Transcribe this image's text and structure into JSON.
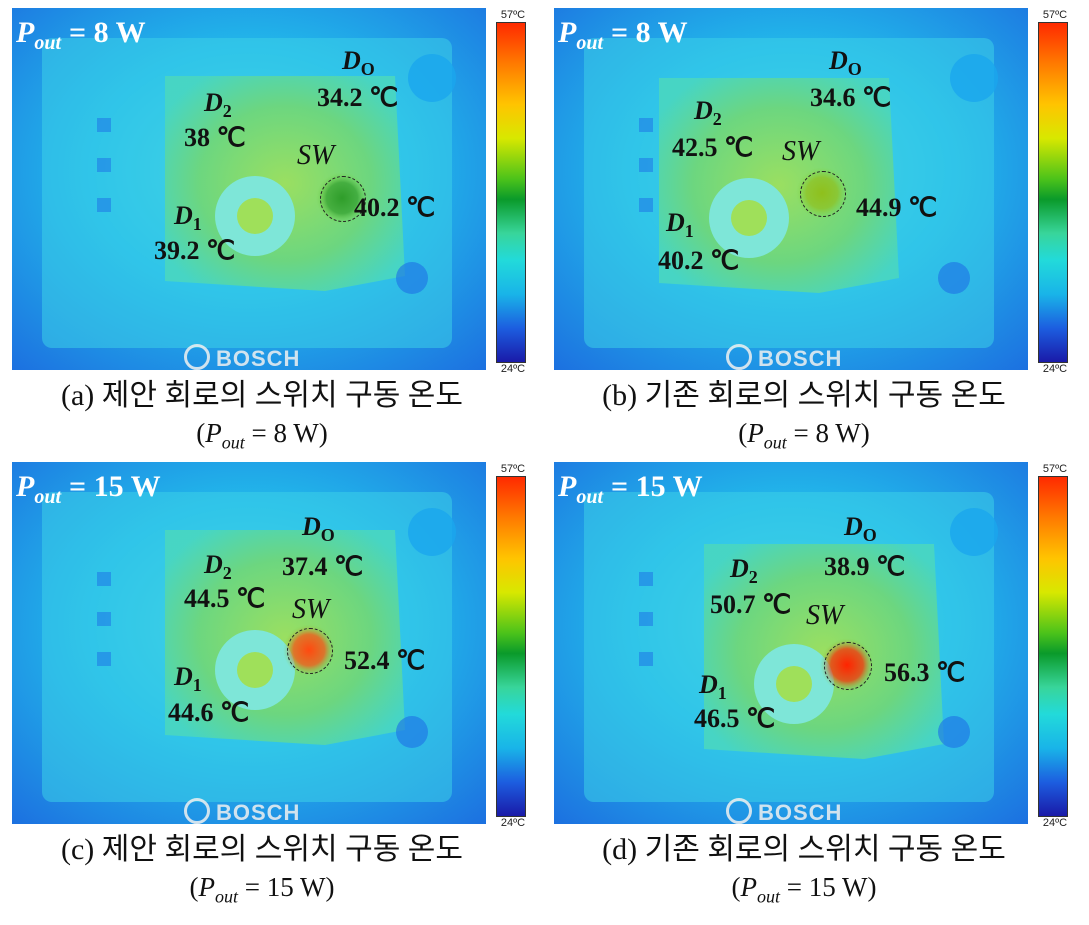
{
  "colorbar": {
    "max": "57ºC",
    "min": "24ºC"
  },
  "watermark": "BOSCH",
  "panels": [
    {
      "pout_symbol": "P",
      "pout_sub": "out",
      "pout_value": "= 8 W",
      "do_temp": "34.2 ℃",
      "d2_temp": "38 ℃",
      "d1_temp": "39.2 ℃",
      "sw_temp": "40.2 ℃",
      "caption": "(a) 제안 회로의 스위치 구동 온도",
      "caption_sub": "(P",
      "caption_sub_idx": "out",
      "caption_sub_tail": " = 8 W)",
      "hot_color": "#2f9d2a"
    },
    {
      "pout_symbol": "P",
      "pout_sub": "out",
      "pout_value": "= 8 W",
      "do_temp": "34.6 ℃",
      "d2_temp": "42.5 ℃",
      "d1_temp": "40.2 ℃",
      "sw_temp": "44.9 ℃",
      "caption": "(b) 기존 회로의 스위치 구동 온도",
      "caption_sub": "(P",
      "caption_sub_idx": "out",
      "caption_sub_tail": " = 8 W)",
      "hot_color": "#8fc01c"
    },
    {
      "pout_symbol": "P",
      "pout_sub": "out",
      "pout_value": "= 15 W",
      "do_temp": "37.4 ℃",
      "d2_temp": "44.5 ℃",
      "d1_temp": "44.6 ℃",
      "sw_temp": "52.4 ℃",
      "caption": "(c) 제안 회로의 스위치 구동 온도",
      "caption_sub": "(P",
      "caption_sub_idx": "out",
      "caption_sub_tail": " = 15 W)",
      "hot_color": "#ff4a10"
    },
    {
      "pout_symbol": "P",
      "pout_sub": "out",
      "pout_value": "= 15 W",
      "do_temp": "38.9 ℃",
      "d2_temp": "50.7 ℃",
      "d1_temp": "46.5 ℃",
      "sw_temp": "56.3 ℃",
      "caption": "(d) 기존 회로의 스위치 구동 온도",
      "caption_sub": "(P",
      "caption_sub_idx": "out",
      "caption_sub_tail": " = 15 W)",
      "hot_color": "#ff2400"
    }
  ],
  "labels": {
    "do_letter": "D",
    "do_sub": "O",
    "d2_letter": "D",
    "d2_sub": "2",
    "d1_letter": "D",
    "d1_sub": "1",
    "sw": "SW"
  }
}
